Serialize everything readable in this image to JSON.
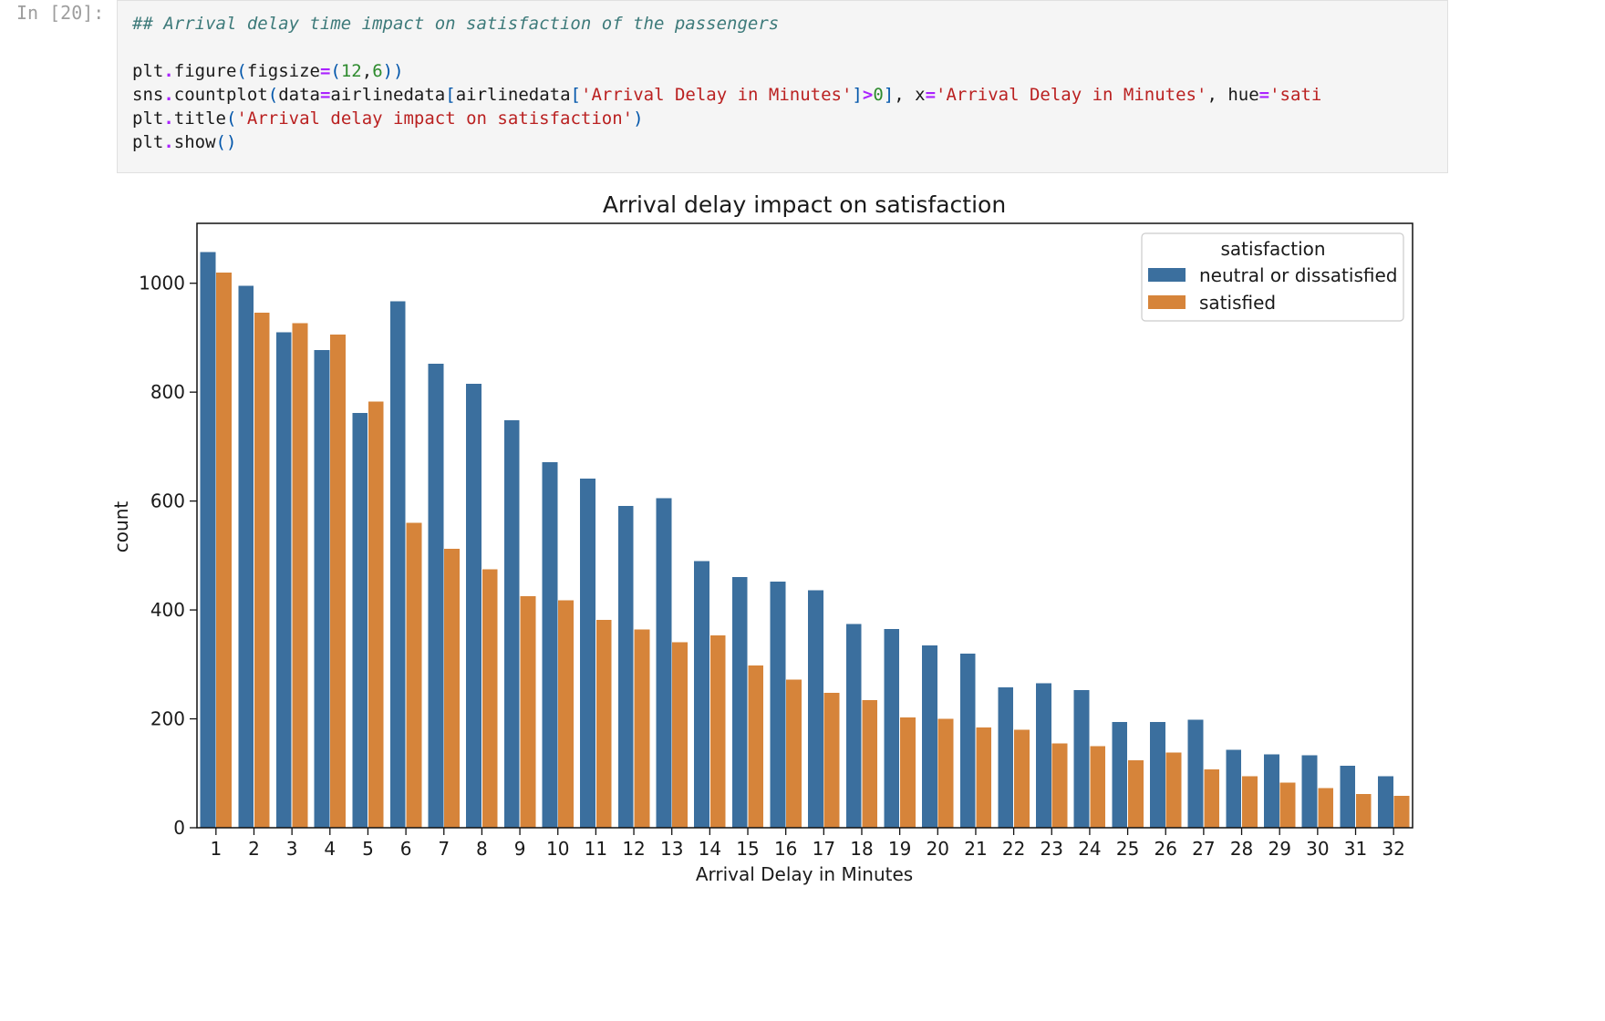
{
  "cell": {
    "prompt": "In [20]:",
    "code": {
      "comment": "## Arrival delay time impact on satisfaction of the passengers",
      "l2": {
        "a": "plt",
        "b": ".",
        "c": "figure",
        "d": "(",
        "e": "figsize",
        "f": "=",
        "g": "(",
        "h": "12",
        "i": ",",
        "j": "6",
        "k": ")",
        "l": ")"
      },
      "l3": {
        "a": "sns",
        "b": ".",
        "c": "countplot",
        "d": "(",
        "e": "data",
        "f": "=",
        "g": "airlinedata",
        "h": "[",
        "i": "airlinedata",
        "j": "[",
        "k": "'Arrival Delay in Minutes'",
        "l": "]",
        "m": ">",
        "n": "0",
        "o": "]",
        "p": ", x",
        "q": "=",
        "r": "'Arrival Delay in Minutes'",
        "s": ", hue",
        "t": "=",
        "u": "'sati"
      },
      "l4": {
        "a": "plt",
        "b": ".",
        "c": "title",
        "d": "(",
        "e": "'Arrival delay impact on satisfaction'",
        "f": ")"
      },
      "l5": {
        "a": "plt",
        "b": ".",
        "c": "show",
        "d": "()"
      }
    }
  },
  "chart_data": {
    "type": "bar",
    "title": "Arrival delay impact on satisfaction",
    "xlabel": "Arrival Delay in Minutes",
    "ylabel": "count",
    "categories": [
      "1",
      "2",
      "3",
      "4",
      "5",
      "6",
      "7",
      "8",
      "9",
      "10",
      "11",
      "12",
      "13",
      "14",
      "15",
      "16",
      "17",
      "18",
      "19",
      "20",
      "21",
      "22",
      "23",
      "24",
      "25",
      "26",
      "27",
      "28",
      "29",
      "30",
      "31",
      "32"
    ],
    "yticks": [
      "0",
      "200",
      "400",
      "600",
      "800",
      "1000"
    ],
    "ylim": [
      0,
      1110
    ],
    "grid": false,
    "legend": {
      "title": "satisfaction",
      "placement": "top-right"
    },
    "series": [
      {
        "name": "neutral or dissatisfied",
        "color": "#3b6f9e",
        "values": [
          1057,
          995,
          910,
          877,
          762,
          967,
          852,
          815,
          748,
          671,
          641,
          591,
          605,
          490,
          460,
          452,
          436,
          374,
          365,
          335,
          320,
          258,
          265,
          253,
          194,
          194,
          198,
          143,
          135,
          133,
          114,
          95
        ]
      },
      {
        "name": "satisfied",
        "color": "#d6843a",
        "values": [
          1020,
          946,
          927,
          906,
          783,
          560,
          512,
          475,
          425,
          418,
          382,
          364,
          341,
          353,
          298,
          272,
          248,
          234,
          203,
          200,
          184,
          180,
          155,
          150,
          124,
          138,
          107,
          95,
          83,
          73,
          62,
          59
        ]
      }
    ]
  }
}
